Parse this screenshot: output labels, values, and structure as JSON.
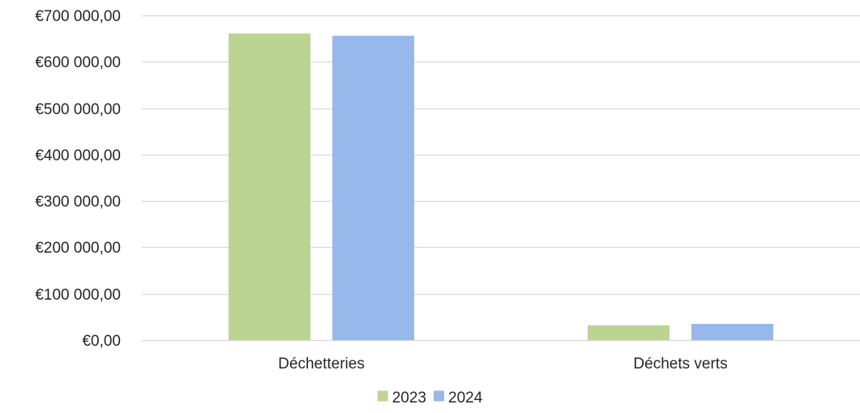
{
  "chart_data": {
    "type": "bar",
    "title": "",
    "xlabel": "",
    "ylabel": "",
    "categories": [
      "Déchetteries",
      "Déchets verts"
    ],
    "series": [
      {
        "name": "2023",
        "color": "#bcd492",
        "values": [
          661000,
          32000
        ]
      },
      {
        "name": "2024",
        "color": "#97b8ea",
        "values": [
          656000,
          35000
        ]
      }
    ],
    "ylim": [
      0,
      700000
    ],
    "yticks": [
      {
        "value": 0,
        "label": "€0,00"
      },
      {
        "value": 100000,
        "label": "€100 000,00"
      },
      {
        "value": 200000,
        "label": "€200 000,00"
      },
      {
        "value": 300000,
        "label": "€300 000,00"
      },
      {
        "value": 400000,
        "label": "€400 000,00"
      },
      {
        "value": 500000,
        "label": "€500 000,00"
      },
      {
        "value": 600000,
        "label": "€600 000,00"
      },
      {
        "value": 700000,
        "label": "€700 000,00"
      }
    ],
    "grid": true,
    "gridColor": "#d9d9d9",
    "legend": "bottom-center"
  }
}
